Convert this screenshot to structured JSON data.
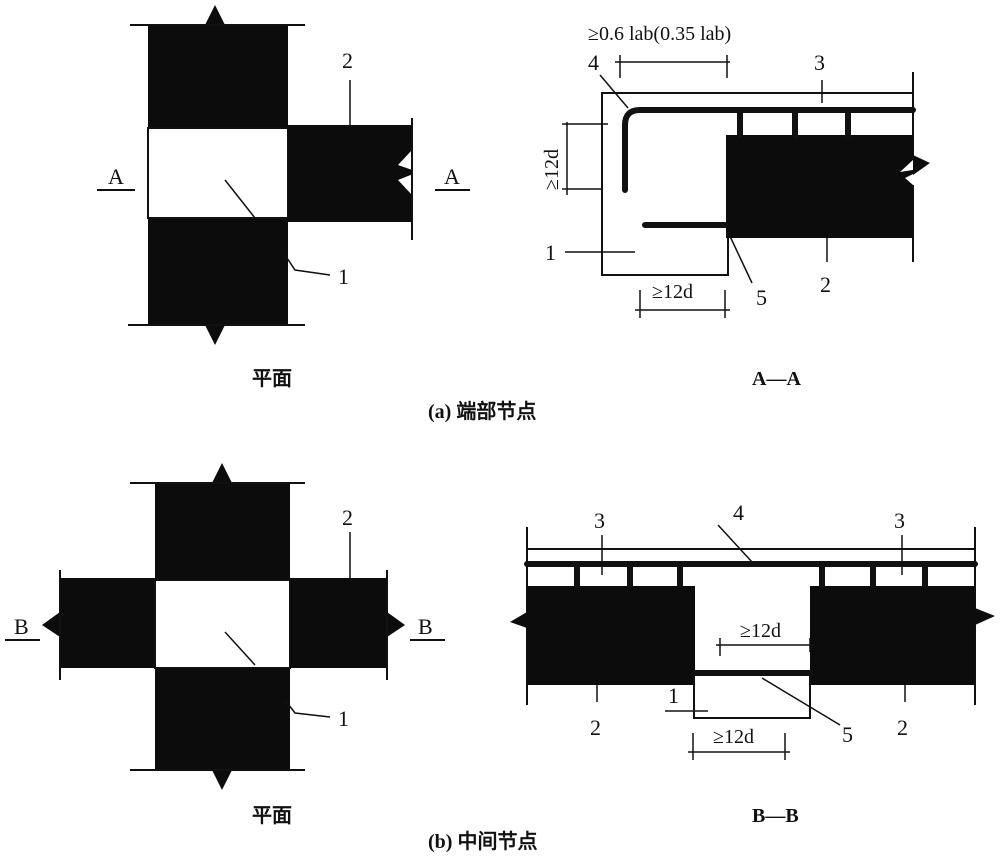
{
  "figure_a": {
    "caption": "(a) 端部节点",
    "plan": {
      "title": "平面",
      "section_mark_left": "A",
      "section_mark_right": "A",
      "label_1": "1",
      "label_2": "2"
    },
    "section": {
      "title": "A—A",
      "top_dimension": "≥0.6 lab(0.35 lab)",
      "vertical_dimension": "≥12d",
      "bottom_dimension": "≥12d",
      "label_1": "1",
      "label_2": "2",
      "label_3": "3",
      "label_4": "4",
      "label_5": "5"
    }
  },
  "figure_b": {
    "caption": "(b) 中间节点",
    "plan": {
      "title": "平面",
      "section_mark_left": "B",
      "section_mark_right": "B",
      "label_1": "1",
      "label_2": "2"
    },
    "section": {
      "title": "B—B",
      "inner_dimension": "≥12d",
      "bottom_dimension": "≥12d",
      "label_1": "1",
      "label_2_left": "2",
      "label_2_right": "2",
      "label_3_left": "3",
      "label_3_right": "3",
      "label_4": "4",
      "label_5": "5"
    }
  }
}
